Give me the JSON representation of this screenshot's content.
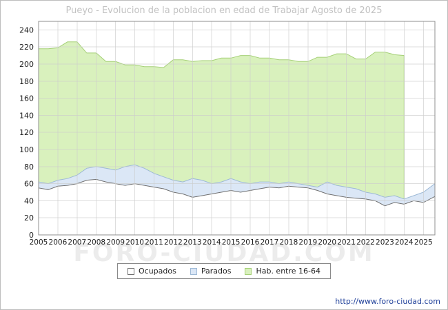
{
  "watermark": "FORO-CIUDAD.COM",
  "footer_url": "http://www.foro-ciudad.com",
  "legend": [
    {
      "label": "Ocupados",
      "fill": "#ffffff",
      "border": "#707070"
    },
    {
      "label": "Parados",
      "fill": "#dbe7f6",
      "border": "#9db9d6"
    },
    {
      "label": "Hab. entre 16-64",
      "fill": "#d9f1bd",
      "border": "#a5d077"
    }
  ],
  "chart_data": {
    "type": "area",
    "title": "Pueyo - Evolucion de la poblacion en edad de Trabajar Agosto de 2025",
    "xlabel": "",
    "ylabel": "",
    "xlim": [
      2005,
      2025.6
    ],
    "ylim": [
      0,
      250
    ],
    "yticks": [
      0,
      20,
      40,
      60,
      80,
      100,
      120,
      140,
      160,
      180,
      200,
      220,
      240
    ],
    "xticks": [
      2005,
      2006,
      2007,
      2008,
      2009,
      2010,
      2011,
      2012,
      2013,
      2014,
      2015,
      2016,
      2017,
      2018,
      2019,
      2020,
      2021,
      2022,
      2023,
      2024,
      2025
    ],
    "grid": true,
    "legend_position": "bottom",
    "parados_stacked_on_ocupados": true,
    "x": [
      2005,
      2005.5,
      2006,
      2006.5,
      2007,
      2007.5,
      2008,
      2008.5,
      2009,
      2009.5,
      2010,
      2010.5,
      2011,
      2011.5,
      2012,
      2012.5,
      2013,
      2013.5,
      2014,
      2014.5,
      2015,
      2015.5,
      2016,
      2016.5,
      2017,
      2017.5,
      2018,
      2018.5,
      2019,
      2019.5,
      2020,
      2020.5,
      2021,
      2021.5,
      2022,
      2022.5,
      2023,
      2023.5,
      2024,
      2024.5,
      2025,
      2025.6
    ],
    "series": [
      {
        "name": "Ocupados",
        "fill": "#ffffff",
        "line": "#707070",
        "values": [
          55,
          53,
          57,
          58,
          60,
          64,
          65,
          62,
          60,
          58,
          60,
          58,
          56,
          54,
          50,
          48,
          44,
          46,
          48,
          50,
          52,
          50,
          52,
          54,
          56,
          55,
          57,
          56,
          55,
          52,
          48,
          46,
          44,
          43,
          42,
          40,
          34,
          38,
          36,
          40,
          38,
          45
        ]
      },
      {
        "name": "Parados",
        "fill": "#dbe7f6",
        "line": "#9db9d6",
        "values": [
          7,
          7,
          7,
          8,
          10,
          14,
          15,
          16,
          16,
          22,
          22,
          20,
          16,
          14,
          14,
          14,
          22,
          18,
          12,
          12,
          14,
          12,
          8,
          8,
          6,
          5,
          5,
          4,
          3,
          4,
          14,
          12,
          12,
          11,
          8,
          8,
          10,
          8,
          6,
          6,
          12,
          15
        ]
      },
      {
        "name": "Hab. entre 16-64",
        "fill": "#d9f1bd",
        "line": "#a5d077",
        "values": [
          218,
          218,
          219,
          226,
          226,
          213,
          213,
          203,
          203,
          199,
          199,
          197,
          197,
          196,
          205,
          205,
          203,
          204,
          204,
          207,
          207,
          210,
          210,
          207,
          207,
          205,
          205,
          203,
          203,
          208,
          208,
          212,
          212,
          206,
          206,
          214,
          214,
          211,
          210,
          null,
          null,
          null
        ]
      }
    ]
  }
}
